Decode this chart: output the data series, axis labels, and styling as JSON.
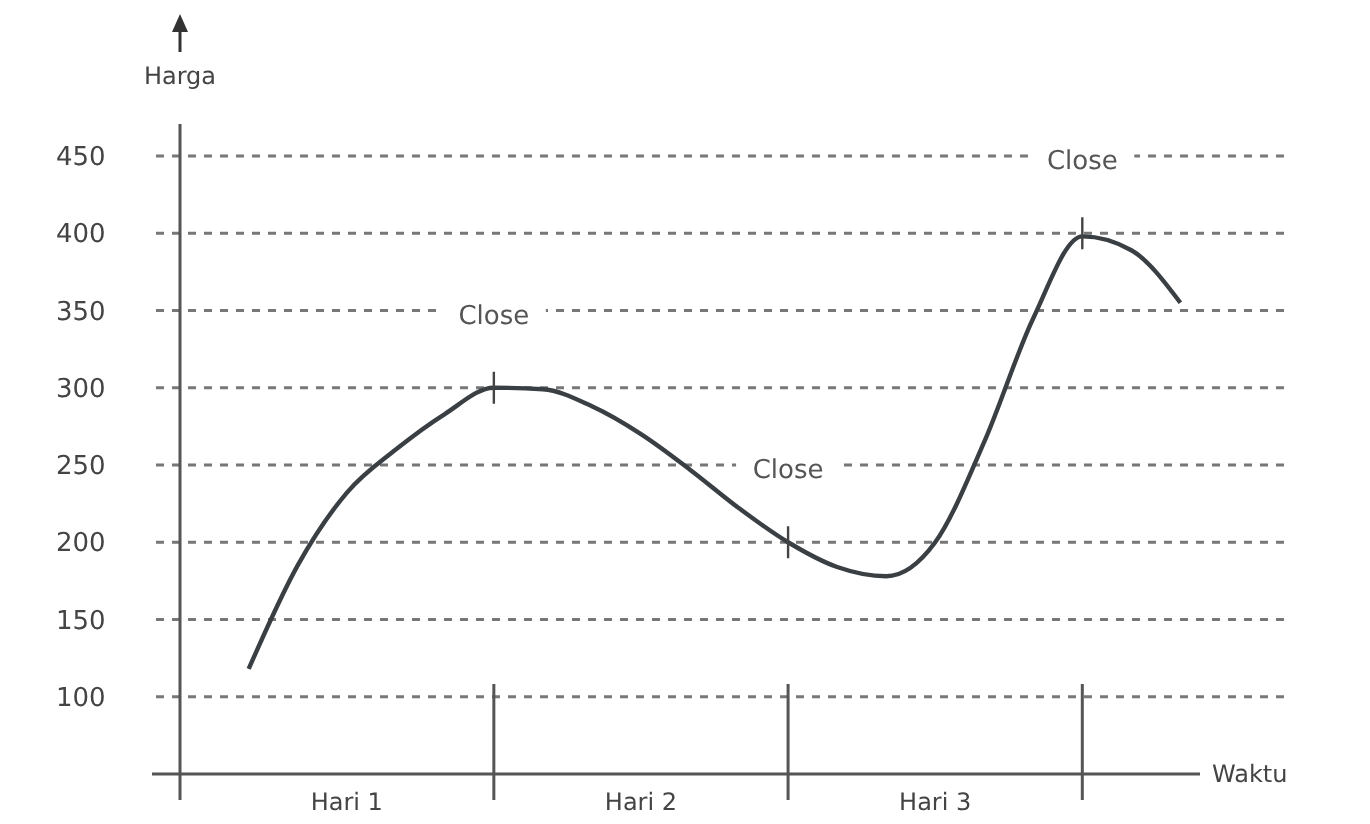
{
  "chart_data": {
    "type": "line",
    "xlabel": "Waktu",
    "ylabel": "Harga",
    "categories": [
      null,
      null,
      "Hari 1",
      null,
      null,
      null,
      null,
      null,
      "Hari 2",
      null,
      null,
      null,
      null,
      null,
      "Hari 3",
      null,
      null,
      null,
      null,
      null
    ],
    "series": [
      {
        "color": "#3a3f44",
        "values": [
          118,
          185,
          232,
          260,
          283,
          300,
          299,
          288,
          270,
          247,
          222,
          200,
          184,
          178,
          200,
          265,
          345,
          398,
          389,
          355
        ]
      }
    ],
    "ylim": [
      50,
      450
    ],
    "yticks": [
      100,
      150,
      200,
      250,
      300,
      350,
      400,
      450
    ],
    "grid": "y",
    "marker": "none",
    "line_style": "solid",
    "annotations": [
      {
        "text": "Close",
        "y": 300
      },
      {
        "text": "Close",
        "y": 200
      },
      {
        "text": "Close",
        "y": 400
      }
    ]
  }
}
